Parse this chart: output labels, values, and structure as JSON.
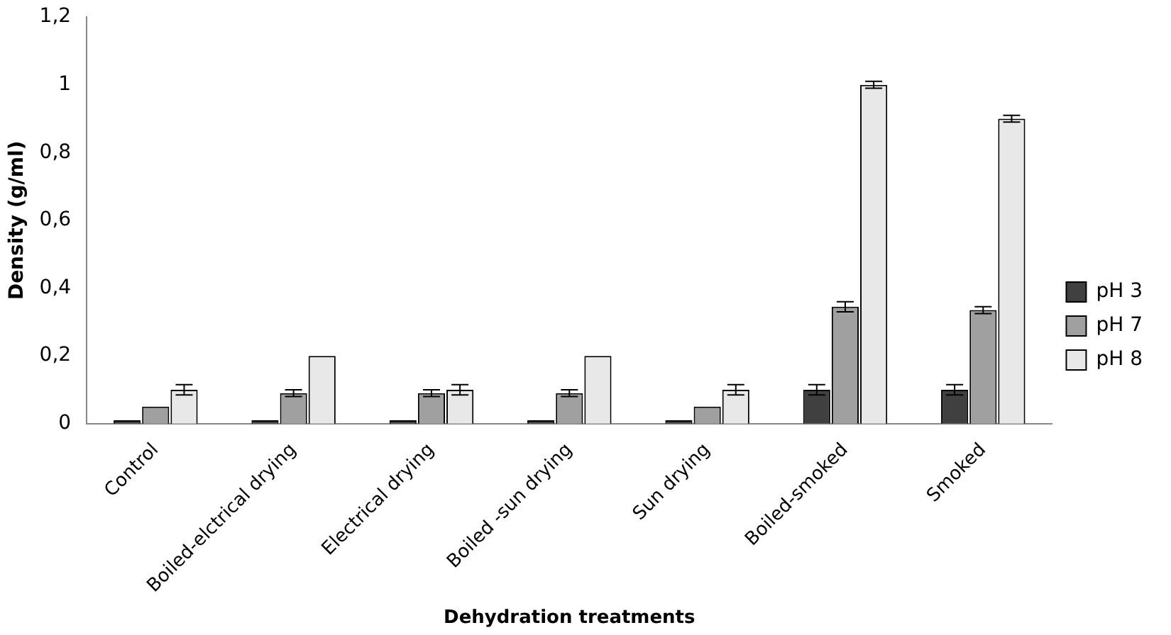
{
  "chart_data": {
    "type": "bar",
    "xlabel": "Dehydration treatments",
    "ylabel": "Density (g/ml)",
    "categories": [
      "Control",
      "Boiled-elctrical drying",
      "Electrical drying",
      "Boiled -sun drying",
      "Sun drying",
      "Boiled-smoked",
      "Smoked"
    ],
    "series": [
      {
        "name": "pH 3",
        "color": "#404040",
        "values": [
          0.01,
          0.01,
          0.01,
          0.01,
          0.01,
          0.1,
          0.1
        ],
        "errors": [
          null,
          null,
          null,
          null,
          null,
          0.015,
          0.015
        ]
      },
      {
        "name": "pH 7",
        "color": "#a0a0a0",
        "values": [
          0.05,
          0.09,
          0.09,
          0.09,
          0.05,
          0.345,
          0.335
        ],
        "errors": [
          null,
          0.01,
          0.01,
          0.01,
          null,
          0.015,
          0.01
        ]
      },
      {
        "name": "pH 8",
        "color": "#e8e8e8",
        "values": [
          0.1,
          0.2,
          0.1,
          0.2,
          0.1,
          1.0,
          0.9
        ],
        "errors": [
          0.015,
          null,
          0.015,
          null,
          0.015,
          0.01,
          0.01
        ]
      }
    ],
    "ylim": [
      0,
      1.2
    ],
    "yticks": [
      0,
      {
        "value": 0.2,
        "label": "0,2"
      },
      {
        "value": 0.4,
        "label": "0,4"
      },
      {
        "value": 0.6,
        "label": "0,6"
      },
      {
        "value": 0.8,
        "label": "0,8"
      },
      1,
      {
        "value": 1.2,
        "label": "1,2"
      }
    ],
    "grid": false,
    "legend": "right"
  }
}
